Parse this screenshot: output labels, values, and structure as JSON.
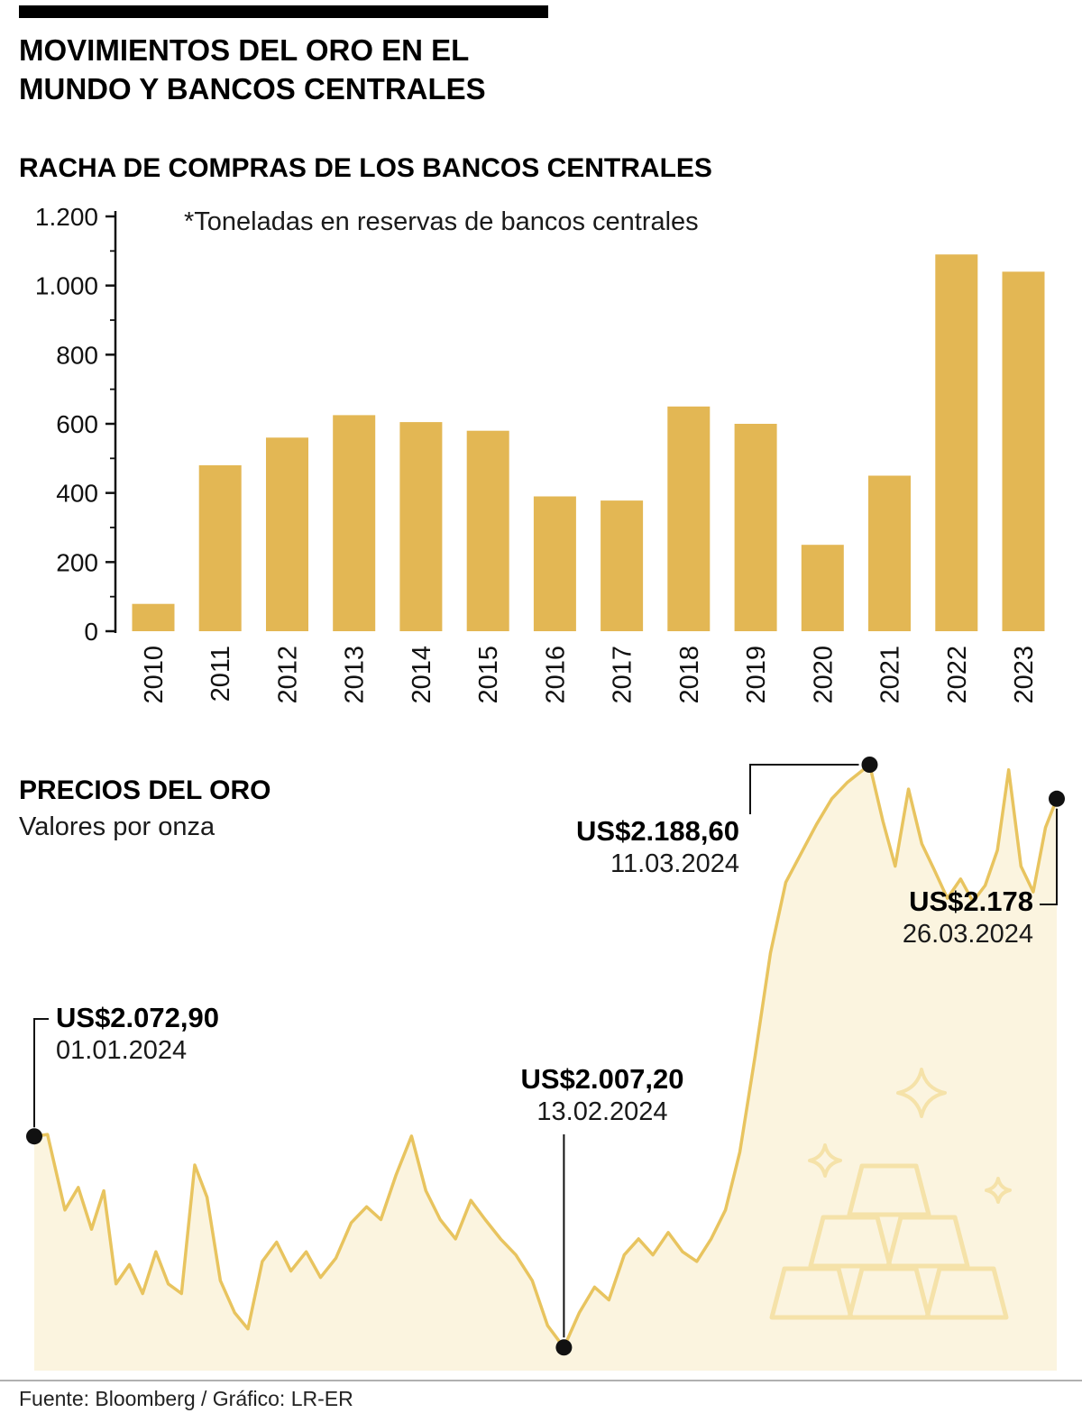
{
  "header": {
    "title_line1": "MOVIMIENTOS DEL ORO EN EL",
    "title_line2": "MUNDO Y BANCOS CENTRALES"
  },
  "footer": {
    "source": "Fuente: Bloomberg / Gráfico: LR-ER"
  },
  "colors": {
    "bar": "#E3B754",
    "line": "#E8C45F",
    "area_fill": "#FBF4DF",
    "ingot": "#F5E2A9",
    "text": "#111111"
  },
  "chart_data": [
    {
      "type": "bar",
      "title": "RACHA DE COMPRAS DE LOS BANCOS CENTRALES",
      "note": "*Toneladas en reservas de bancos centrales",
      "categories": [
        "2010",
        "2011",
        "2012",
        "2013",
        "2014",
        "2015",
        "2016",
        "2017",
        "2018",
        "2019",
        "2020",
        "2021",
        "2022",
        "2023"
      ],
      "values": [
        79,
        480,
        560,
        625,
        605,
        580,
        390,
        378,
        650,
        600,
        250,
        450,
        1090,
        1040
      ],
      "ylim": [
        0,
        1200
      ],
      "yticks": [
        0,
        200,
        400,
        600,
        800,
        1000,
        1200
      ],
      "ytick_labels": [
        "0",
        "200",
        "400",
        "600",
        "800",
        "1.000",
        "1.200"
      ],
      "grid": false,
      "legend": "none"
    },
    {
      "type": "area",
      "title": "PRECIOS DEL ORO",
      "subtitle": "Valores por onza",
      "ylim": [
        2000,
        2190
      ],
      "grid": false,
      "legend": "none",
      "series": [
        {
          "name": "Precio del oro",
          "points": [
            [
              0,
              2072.9
            ],
            [
              0.013,
              2073.5
            ],
            [
              0.03,
              2050
            ],
            [
              0.043,
              2057
            ],
            [
              0.056,
              2044
            ],
            [
              0.068,
              2056
            ],
            [
              0.08,
              2027
            ],
            [
              0.093,
              2033
            ],
            [
              0.106,
              2024
            ],
            [
              0.119,
              2037
            ],
            [
              0.131,
              2027
            ],
            [
              0.144,
              2024
            ],
            [
              0.157,
              2064
            ],
            [
              0.169,
              2054
            ],
            [
              0.182,
              2028
            ],
            [
              0.196,
              2018
            ],
            [
              0.209,
              2013
            ],
            [
              0.223,
              2034
            ],
            [
              0.237,
              2040
            ],
            [
              0.251,
              2031
            ],
            [
              0.266,
              2037
            ],
            [
              0.28,
              2029
            ],
            [
              0.295,
              2035
            ],
            [
              0.31,
              2046
            ],
            [
              0.325,
              2051
            ],
            [
              0.339,
              2047
            ],
            [
              0.354,
              2061
            ],
            [
              0.369,
              2073
            ],
            [
              0.383,
              2056
            ],
            [
              0.397,
              2047
            ],
            [
              0.412,
              2041
            ],
            [
              0.427,
              2053
            ],
            [
              0.441,
              2047
            ],
            [
              0.456,
              2041
            ],
            [
              0.471,
              2036
            ],
            [
              0.487,
              2028
            ],
            [
              0.502,
              2014
            ],
            [
              0.518,
              2007.2
            ],
            [
              0.533,
              2018
            ],
            [
              0.548,
              2026
            ],
            [
              0.562,
              2022
            ],
            [
              0.577,
              2036
            ],
            [
              0.591,
              2041
            ],
            [
              0.605,
              2036
            ],
            [
              0.62,
              2043
            ],
            [
              0.634,
              2037
            ],
            [
              0.648,
              2034
            ],
            [
              0.662,
              2041
            ],
            [
              0.676,
              2050
            ],
            [
              0.69,
              2068
            ],
            [
              0.705,
              2098
            ],
            [
              0.72,
              2130
            ],
            [
              0.735,
              2152
            ],
            [
              0.75,
              2161
            ],
            [
              0.765,
              2170
            ],
            [
              0.78,
              2178
            ],
            [
              0.795,
              2183
            ],
            [
              0.817,
              2188.6
            ],
            [
              0.83,
              2171
            ],
            [
              0.842,
              2157
            ],
            [
              0.855,
              2181
            ],
            [
              0.868,
              2164
            ],
            [
              0.88,
              2156
            ],
            [
              0.893,
              2147
            ],
            [
              0.906,
              2153
            ],
            [
              0.918,
              2146
            ],
            [
              0.93,
              2151
            ],
            [
              0.942,
              2162
            ],
            [
              0.953,
              2187
            ],
            [
              0.965,
              2157
            ],
            [
              0.977,
              2149
            ],
            [
              0.989,
              2169
            ],
            [
              1,
              2178
            ]
          ]
        }
      ],
      "annotations": [
        {
          "label": "US$2.072,90",
          "date": "01.01.2024",
          "t": 0.0,
          "value": 2072.9
        },
        {
          "label": "US$2.007,20",
          "date": "13.02.2024",
          "t": 0.518,
          "value": 2007.2
        },
        {
          "label": "US$2.188,60",
          "date": "11.03.2024",
          "t": 0.817,
          "value": 2188.6
        },
        {
          "label": "US$2.178",
          "date": "26.03.2024",
          "t": 1.0,
          "value": 2178
        }
      ]
    }
  ]
}
